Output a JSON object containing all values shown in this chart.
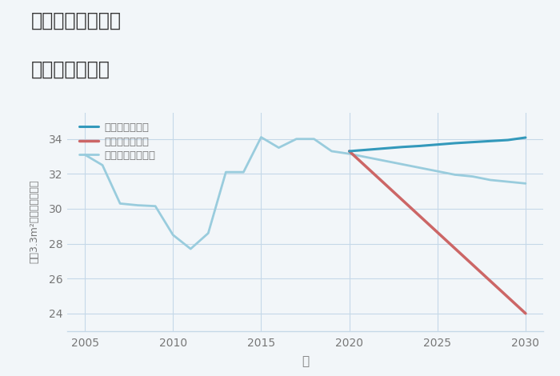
{
  "title_line1": "奈良県平城山駅の",
  "title_line2": "土地の価格推移",
  "xlabel": "年",
  "ylabel_tsubo": "坪（3.3m²）単価（万円）",
  "xlim": [
    2004.0,
    2031.0
  ],
  "ylim": [
    23.0,
    35.5
  ],
  "yticks": [
    24,
    26,
    28,
    30,
    32,
    34
  ],
  "xticks": [
    2005,
    2010,
    2015,
    2020,
    2025,
    2030
  ],
  "good_scenario": {
    "label": "グッドシナリオ",
    "color": "#3399bb",
    "linewidth": 2.2,
    "x": [
      2020,
      2021,
      2022,
      2023,
      2024,
      2025,
      2026,
      2027,
      2028,
      2029,
      2030
    ],
    "y": [
      33.3,
      33.38,
      33.46,
      33.54,
      33.6,
      33.68,
      33.76,
      33.82,
      33.88,
      33.94,
      34.08
    ]
  },
  "bad_scenario": {
    "label": "バッドシナリオ",
    "color": "#cc6666",
    "linewidth": 2.5,
    "x": [
      2020,
      2030
    ],
    "y": [
      33.3,
      24.0
    ]
  },
  "normal_scenario": {
    "label": "ノーマルシナリオ",
    "color": "#99ccdd",
    "linewidth": 2.0,
    "x": [
      2005,
      2006,
      2007,
      2008,
      2009,
      2010,
      2011,
      2012,
      2013,
      2014,
      2015,
      2016,
      2017,
      2018,
      2019,
      2020,
      2021,
      2022,
      2023,
      2024,
      2025,
      2026,
      2027,
      2028,
      2029,
      2030
    ],
    "y": [
      33.1,
      32.5,
      30.3,
      30.2,
      30.15,
      28.5,
      27.7,
      28.6,
      32.1,
      32.1,
      34.1,
      33.5,
      34.0,
      34.0,
      33.3,
      33.15,
      32.95,
      32.75,
      32.55,
      32.35,
      32.15,
      31.95,
      31.85,
      31.65,
      31.55,
      31.45
    ]
  },
  "background_color": "#f2f6f9",
  "grid_color": "#c5d8e8",
  "title_color": "#333333",
  "axis_color": "#777777"
}
